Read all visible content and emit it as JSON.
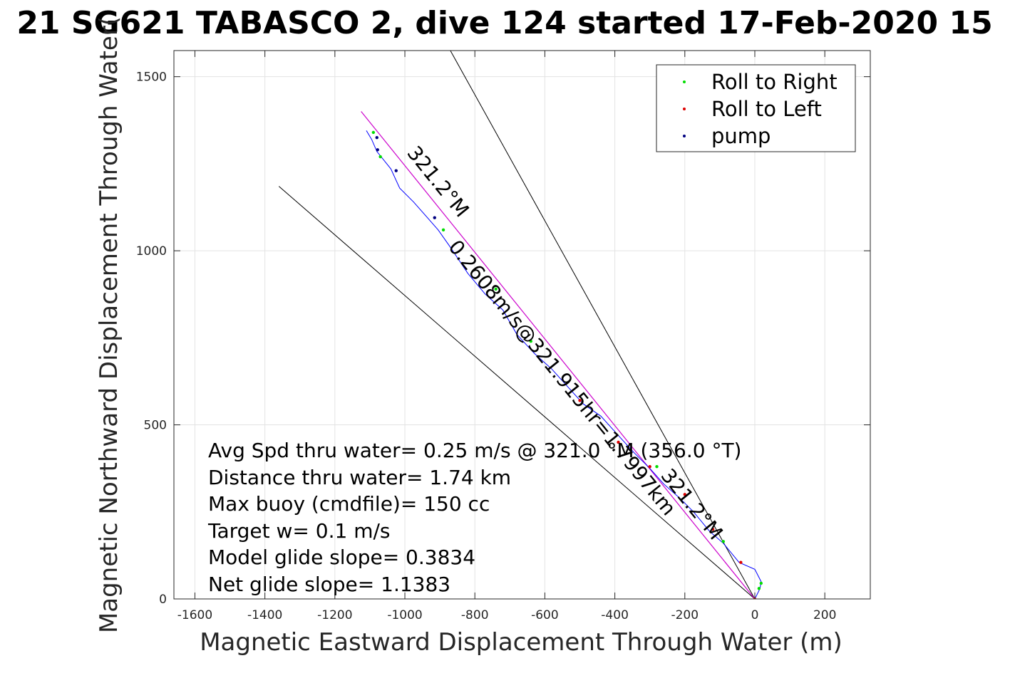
{
  "chart_data": {
    "type": "line",
    "title": "21 SG621 TABASCO 2, dive 124 started 17-Feb-2020 15",
    "xlabel": "Magnetic Eastward Displacement Through Water (m)",
    "ylabel": "Magnetic Northward Displacement Through Water(",
    "xlim": [
      -1660,
      330
    ],
    "ylim": [
      0,
      1575
    ],
    "x_ticks": [
      -1600,
      -1400,
      -1200,
      -1000,
      -800,
      -600,
      -400,
      -200,
      0,
      200
    ],
    "x_tick_labels": [
      "-1600",
      "-1400",
      "-1200",
      "-1000",
      "-800",
      "-600",
      "-400",
      "-200",
      "0",
      "200"
    ],
    "y_ticks": [
      0,
      500,
      1000,
      1500
    ],
    "y_tick_labels": [
      "0",
      "500",
      "1000",
      "1500"
    ],
    "grid": true,
    "legend_position": "top-right",
    "legend": [
      {
        "label": "Roll to Right",
        "color": "#00dd00"
      },
      {
        "label": "Roll to Left",
        "color": "#dd0000"
      },
      {
        "label": "pump",
        "color": "#000080"
      }
    ],
    "track": {
      "color": "#0000ff",
      "points": [
        [
          0,
          0
        ],
        [
          15,
          30
        ],
        [
          18,
          50
        ],
        [
          0,
          85
        ],
        [
          -45,
          105
        ],
        [
          -90,
          160
        ],
        [
          -130,
          195
        ],
        [
          -175,
          250
        ],
        [
          -215,
          290
        ],
        [
          -260,
          330
        ],
        [
          -300,
          375
        ],
        [
          -345,
          420
        ],
        [
          -395,
          475
        ],
        [
          -440,
          525
        ],
        [
          -490,
          560
        ],
        [
          -535,
          610
        ],
        [
          -580,
          660
        ],
        [
          -630,
          705
        ],
        [
          -680,
          760
        ],
        [
          -720,
          830
        ],
        [
          -770,
          875
        ],
        [
          -820,
          935
        ],
        [
          -870,
          1010
        ],
        [
          -905,
          1060
        ],
        [
          -940,
          1100
        ],
        [
          -975,
          1140
        ],
        [
          -1015,
          1180
        ],
        [
          -1040,
          1235
        ],
        [
          -1080,
          1285
        ],
        [
          -1095,
          1320
        ],
        [
          -1110,
          1345
        ]
      ]
    },
    "magenta_line": {
      "color": "#cc00cc",
      "points": [
        [
          0,
          0
        ],
        [
          -1125,
          1400
        ]
      ]
    },
    "black_lines": [
      {
        "points": [
          [
            0,
            0
          ],
          [
            -1360,
            1185
          ]
        ]
      },
      {
        "points": [
          [
            0,
            0
          ],
          [
            -870,
            1575
          ]
        ]
      }
    ],
    "roll_right_points": [
      [
        18,
        45
      ],
      [
        12,
        30
      ],
      [
        -90,
        165
      ],
      [
        -280,
        380
      ],
      [
        -640,
        740
      ],
      [
        -740,
        890
      ],
      [
        -890,
        1060
      ],
      [
        -1070,
        1270
      ],
      [
        -1090,
        1340
      ]
    ],
    "roll_left_points": [
      [
        -40,
        105
      ],
      [
        -120,
        200
      ],
      [
        -200,
        300
      ],
      [
        -300,
        380
      ],
      [
        -390,
        450
      ],
      [
        -500,
        570
      ]
    ],
    "pump_points": [
      [
        -1080,
        1325
      ],
      [
        -1078,
        1290
      ],
      [
        -1025,
        1230
      ],
      [
        -915,
        1095
      ]
    ],
    "annotations": {
      "heading_line": "321.2°M",
      "heading_track": "321.2°M",
      "current": "0.2608m/s@321.915hr=1.7997km"
    },
    "stats": [
      "Avg Spd thru water=  0.25 m/s @ 321.0 °M (356.0 °T)",
      "Distance thru water=  1.74 km",
      "Max buoy (cmdfile)= 150 cc",
      "Target w= 0.1 m/s",
      "Model glide slope= 0.3834",
      "Net glide slope= 1.1383"
    ]
  }
}
